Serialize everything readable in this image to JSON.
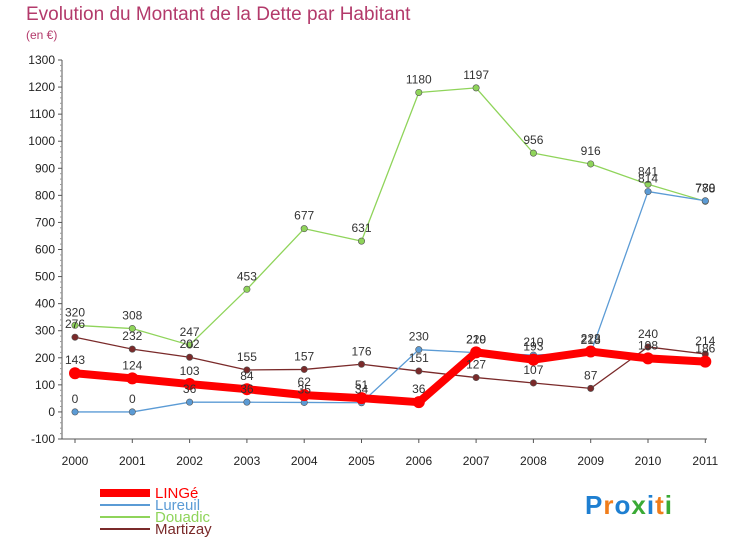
{
  "header": {
    "title": "Evolution du Montant de la Dette par Habitant",
    "subtitle": "(en €)"
  },
  "logo": {
    "text": "Proxiti",
    "colors": [
      "#1e7fd1",
      "#f07d1a",
      "#1e7fd1",
      "#3aaa35",
      "#1e7fd1",
      "#f07d1a",
      "#3aaa35"
    ]
  },
  "chart_data": {
    "type": "line",
    "title": "Evolution du Montant de la Dette par Habitant",
    "subtitle": "(en €)",
    "xlabel": "",
    "ylabel": "",
    "categories": [
      "2000",
      "2001",
      "2002",
      "2003",
      "2004",
      "2005",
      "2006",
      "2007",
      "2008",
      "2009",
      "2010",
      "2011"
    ],
    "ylim": [
      -100,
      1300
    ],
    "yticks": [
      -100,
      0,
      100,
      200,
      300,
      400,
      500,
      600,
      700,
      800,
      900,
      1000,
      1100,
      1200,
      1300
    ],
    "grid": false,
    "legend_position": "bottom-left",
    "series": [
      {
        "name": "LINGé",
        "color": "#ff0000",
        "values": [
          143,
          124,
          103,
          84,
          62,
          51,
          36,
          220,
          193,
          223,
          198,
          186
        ],
        "labels": [
          "143",
          "124",
          "103",
          "84",
          "62",
          "51",
          "36",
          "220",
          "193",
          "223",
          "198",
          "186"
        ]
      },
      {
        "name": "Lureuil",
        "color": "#5b9bd5",
        "values": [
          0,
          0,
          36,
          36,
          35,
          34,
          230,
          219,
          210,
          218,
          814,
          780
        ],
        "labels": [
          "0",
          "0",
          "36",
          "36",
          "35",
          "34",
          "230",
          "219",
          "210",
          "218",
          "814",
          "780"
        ]
      },
      {
        "name": "Douadic",
        "color": "#8fd45a",
        "values": [
          320,
          308,
          247,
          453,
          677,
          631,
          1180,
          1197,
          956,
          916,
          841,
          778
        ],
        "labels": [
          "320",
          "308",
          "247",
          "453",
          "677",
          "631",
          "1180",
          "1197",
          "956",
          "916",
          "841",
          "778"
        ]
      },
      {
        "name": "Martizay",
        "color": "#7a2a2a",
        "values": [
          276,
          232,
          202,
          155,
          157,
          176,
          151,
          127,
          107,
          87,
          240,
          214
        ],
        "labels": [
          "276",
          "232",
          "202",
          "155",
          "157",
          "176",
          "151",
          "127",
          "107",
          "87",
          "240",
          "214"
        ]
      }
    ]
  }
}
